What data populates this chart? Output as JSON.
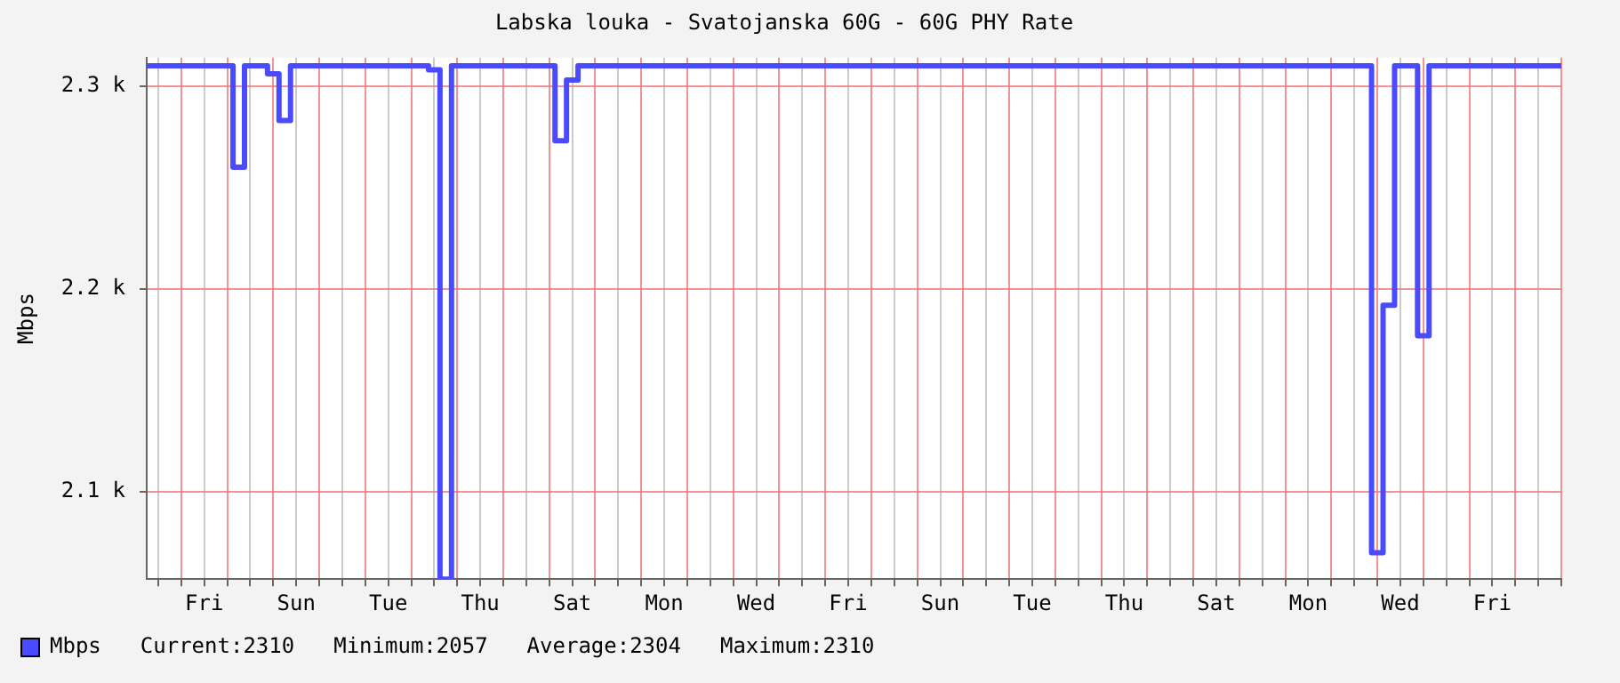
{
  "chart_data": {
    "type": "step",
    "title": "Labska louka - Svatojanska 60G - 60G PHY Rate",
    "ylabel": "Mbps",
    "categories": [
      null,
      null,
      null,
      null,
      null,
      "Fri",
      null,
      null,
      null,
      null,
      null,
      null,
      null,
      "Sun",
      null,
      null,
      null,
      null,
      null,
      null,
      null,
      "Tue",
      null,
      null,
      null,
      null,
      null,
      null,
      null,
      "Thu",
      null,
      null,
      null,
      null,
      null,
      null,
      null,
      "Sat",
      null,
      null,
      null,
      null,
      null,
      null,
      null,
      "Mon",
      null,
      null,
      null,
      null,
      null,
      null,
      null,
      "Wed",
      null,
      null,
      null,
      null,
      null,
      null,
      null,
      "Fri",
      null,
      null,
      null,
      null,
      null,
      null,
      null,
      "Sun",
      null,
      null,
      null,
      null,
      null,
      null,
      null,
      "Tue",
      null,
      null,
      null,
      null,
      null,
      null,
      null,
      "Thu",
      null,
      null,
      null,
      null,
      null,
      null,
      null,
      "Sat",
      null,
      null,
      null,
      null,
      null,
      null,
      null,
      "Mon",
      null,
      null,
      null,
      null,
      null,
      null,
      null,
      "Wed",
      null,
      null,
      null,
      null,
      null,
      null,
      null,
      "Fri",
      null,
      null,
      null,
      null,
      null,
      null
    ],
    "series": [
      {
        "name": "Mbps",
        "color": "#4a4aff",
        "values": [
          2310,
          2310,
          2310,
          2310,
          2310,
          2310,
          2310,
          2310,
          2260,
          2310,
          2310,
          2306,
          2283,
          2310,
          2310,
          2310,
          2310,
          2310,
          2310,
          2310,
          2310,
          2310,
          2310,
          2310,
          2310,
          2308,
          2057,
          2310,
          2310,
          2310,
          2310,
          2310,
          2310,
          2310,
          2310,
          2310,
          2273,
          2303,
          2310,
          2310,
          2310,
          2310,
          2310,
          2310,
          2310,
          2310,
          2310,
          2310,
          2310,
          2310,
          2310,
          2310,
          2310,
          2310,
          2310,
          2310,
          2310,
          2310,
          2310,
          2310,
          2310,
          2310,
          2310,
          2310,
          2310,
          2310,
          2310,
          2310,
          2310,
          2310,
          2310,
          2310,
          2310,
          2310,
          2310,
          2310,
          2310,
          2310,
          2310,
          2310,
          2310,
          2310,
          2310,
          2310,
          2310,
          2310,
          2310,
          2310,
          2310,
          2310,
          2310,
          2310,
          2310,
          2310,
          2310,
          2310,
          2310,
          2310,
          2310,
          2310,
          2310,
          2310,
          2310,
          2310,
          2310,
          2310,
          2310,
          2070,
          2192,
          2310,
          2310,
          2177,
          2310,
          2310,
          2310,
          2310,
          2310,
          2310,
          2310,
          2310,
          2310,
          2310,
          2310,
          2310
        ]
      }
    ],
    "ylim": [
      2057,
      2314
    ],
    "yticks": [
      {
        "value": 2100,
        "label": "2.1 k"
      },
      {
        "value": 2200,
        "label": "2.2 k"
      },
      {
        "value": 2300,
        "label": "2.3 k"
      }
    ],
    "grid": true,
    "legend": "bottom left",
    "marker": "none",
    "line_style": "solid",
    "annotations": [
      "Current:2310",
      "Minimum:2057",
      "Average:2304",
      "Maximum:2310"
    ]
  }
}
